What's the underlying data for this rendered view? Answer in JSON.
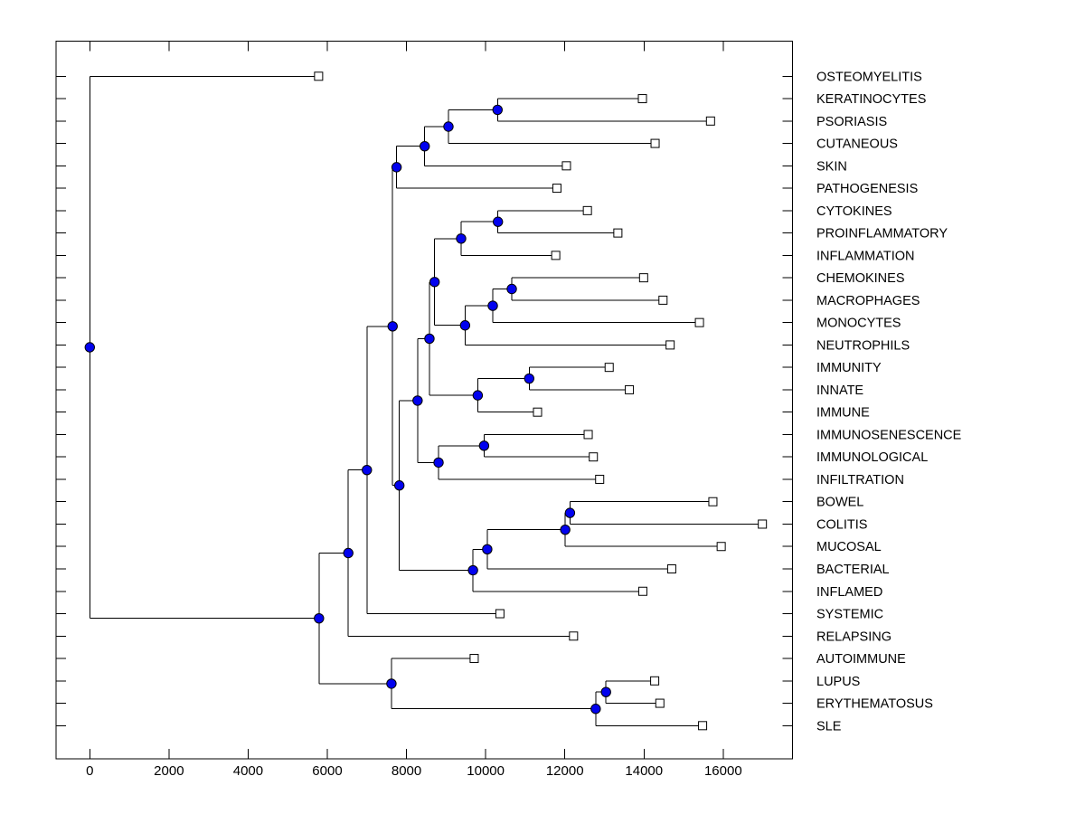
{
  "figure": {
    "background_color": "#FFFFFF",
    "box_color": "#000000"
  },
  "chart_data": {
    "type": "dendrogram",
    "orientation": "horizontal-leaves-right",
    "title": "",
    "xlabel": "",
    "ylabel": "",
    "x_axis": {
      "ticks": [
        0,
        2000,
        4000,
        6000,
        8000,
        10000,
        12000,
        14000,
        16000
      ],
      "tick_labels": [
        "0",
        "2000",
        "4000",
        "6000",
        "8000",
        "10000",
        "12000",
        "14000",
        "16000"
      ],
      "range": [
        -850,
        17750
      ],
      "grid": false
    },
    "style": {
      "line_color": "#000000",
      "branch_node_fill": "#0202EF",
      "branch_node_edge": "#000000",
      "leaf_marker_fill": "#FFFFFF",
      "leaf_marker_edge": "#000000"
    },
    "leaf_labels": [
      "OSTEOMYELITIS",
      "KERATINOCYTES",
      "PSORIASIS",
      "CUTANEOUS",
      "SKIN",
      "PATHOGENESIS",
      "CYTOKINES",
      "PROINFLAMMATORY",
      "INFLAMMATION",
      "CHEMOKINES",
      "MACROPHAGES",
      "MONOCYTES",
      "NEUTROPHILS",
      "IMMUNITY",
      "INNATE",
      "IMMUNE",
      "IMMUNOSENESCENCE",
      "IMMUNOLOGICAL",
      "INFILTRATION",
      "BOWEL",
      "COLITIS",
      "MUCOSAL",
      "BACTERIAL",
      "INFLAMED",
      "SYSTEMIC",
      "RELAPSING",
      "AUTOIMMUNE",
      "LUPUS",
      "ERYTHEMATOSUS",
      "SLE"
    ],
    "tree": {
      "d": 0,
      "children": [
        {
          "name": "OSTEOMYELITIS",
          "d": 5780
        },
        {
          "d": 5790,
          "children": [
            {
              "d": 6530,
              "children": [
                {
                  "d": 7000,
                  "children": [
                    {
                      "d": 7650,
                      "children": [
                        {
                          "d": 7750,
                          "children": [
                            {
                              "d": 8460,
                              "children": [
                                {
                                  "d": 9060,
                                  "children": [
                                    {
                                      "d": 10300,
                                      "children": [
                                        {
                                          "name": "KERATINOCYTES",
                                          "d": 13960
                                        },
                                        {
                                          "name": "PSORIASIS",
                                          "d": 15680
                                        }
                                      ]
                                    },
                                    {
                                      "name": "CUTANEOUS",
                                      "d": 14280
                                    }
                                  ]
                                },
                                {
                                  "name": "SKIN",
                                  "d": 12040
                                }
                              ]
                            },
                            {
                              "name": "PATHOGENESIS",
                              "d": 11800
                            }
                          ]
                        },
                        {
                          "d": 7820,
                          "children": [
                            {
                              "d": 8280,
                              "children": [
                                {
                                  "d": 8580,
                                  "children": [
                                    {
                                      "d": 8710,
                                      "children": [
                                        {
                                          "d": 9380,
                                          "children": [
                                            {
                                              "d": 10310,
                                              "children": [
                                                {
                                                  "name": "CYTOKINES",
                                                  "d": 12570
                                                },
                                                {
                                                  "name": "PROINFLAMMATORY",
                                                  "d": 13340
                                                }
                                              ]
                                            },
                                            {
                                              "name": "INFLAMMATION",
                                              "d": 11770
                                            }
                                          ]
                                        },
                                        {
                                          "d": 9480,
                                          "children": [
                                            {
                                              "d": 10180,
                                              "children": [
                                                {
                                                  "d": 10660,
                                                  "children": [
                                                    {
                                                      "name": "CHEMOKINES",
                                                      "d": 13990
                                                    },
                                                    {
                                                      "name": "MACROPHAGES",
                                                      "d": 14480
                                                    }
                                                  ]
                                                },
                                                {
                                                  "name": "MONOCYTES",
                                                  "d": 15400
                                                }
                                              ]
                                            },
                                            {
                                              "name": "NEUTROPHILS",
                                              "d": 14660
                                            }
                                          ]
                                        }
                                      ]
                                    },
                                    {
                                      "d": 9800,
                                      "children": [
                                        {
                                          "d": 11100,
                                          "children": [
                                            {
                                              "name": "IMMUNITY",
                                              "d": 13120
                                            },
                                            {
                                              "name": "INNATE",
                                              "d": 13630
                                            }
                                          ]
                                        },
                                        {
                                          "name": "IMMUNE",
                                          "d": 11310
                                        }
                                      ]
                                    }
                                  ]
                                },
                                {
                                  "d": 8810,
                                  "children": [
                                    {
                                      "d": 9960,
                                      "children": [
                                        {
                                          "name": "IMMUNOSENESCENCE",
                                          "d": 12590
                                        },
                                        {
                                          "name": "IMMUNOLOGICAL",
                                          "d": 12720
                                        }
                                      ]
                                    },
                                    {
                                      "name": "INFILTRATION",
                                      "d": 12880
                                    }
                                  ]
                                }
                              ]
                            },
                            {
                              "d": 9680,
                              "children": [
                                {
                                  "d": 10040,
                                  "children": [
                                    {
                                      "d": 12010,
                                      "children": [
                                        {
                                          "d": 12130,
                                          "children": [
                                            {
                                              "name": "BOWEL",
                                              "d": 15740
                                            },
                                            {
                                              "name": "COLITIS",
                                              "d": 16990
                                            }
                                          ]
                                        },
                                        {
                                          "name": "MUCOSAL",
                                          "d": 15950
                                        }
                                      ]
                                    },
                                    {
                                      "name": "BACTERIAL",
                                      "d": 14700
                                    }
                                  ]
                                },
                                {
                                  "name": "INFLAMED",
                                  "d": 13970
                                }
                              ]
                            }
                          ]
                        }
                      ]
                    },
                    {
                      "name": "SYSTEMIC",
                      "d": 10360
                    }
                  ]
                },
                {
                  "name": "RELAPSING",
                  "d": 12220
                }
              ]
            },
            {
              "d": 7620,
              "children": [
                {
                  "name": "AUTOIMMUNE",
                  "d": 9710
                },
                {
                  "d": 12780,
                  "children": [
                    {
                      "d": 13040,
                      "children": [
                        {
                          "name": "LUPUS",
                          "d": 14270
                        },
                        {
                          "name": "ERYTHEMATOSUS",
                          "d": 14400
                        }
                      ]
                    },
                    {
                      "name": "SLE",
                      "d": 15480
                    }
                  ]
                }
              ]
            }
          ]
        }
      ]
    }
  }
}
